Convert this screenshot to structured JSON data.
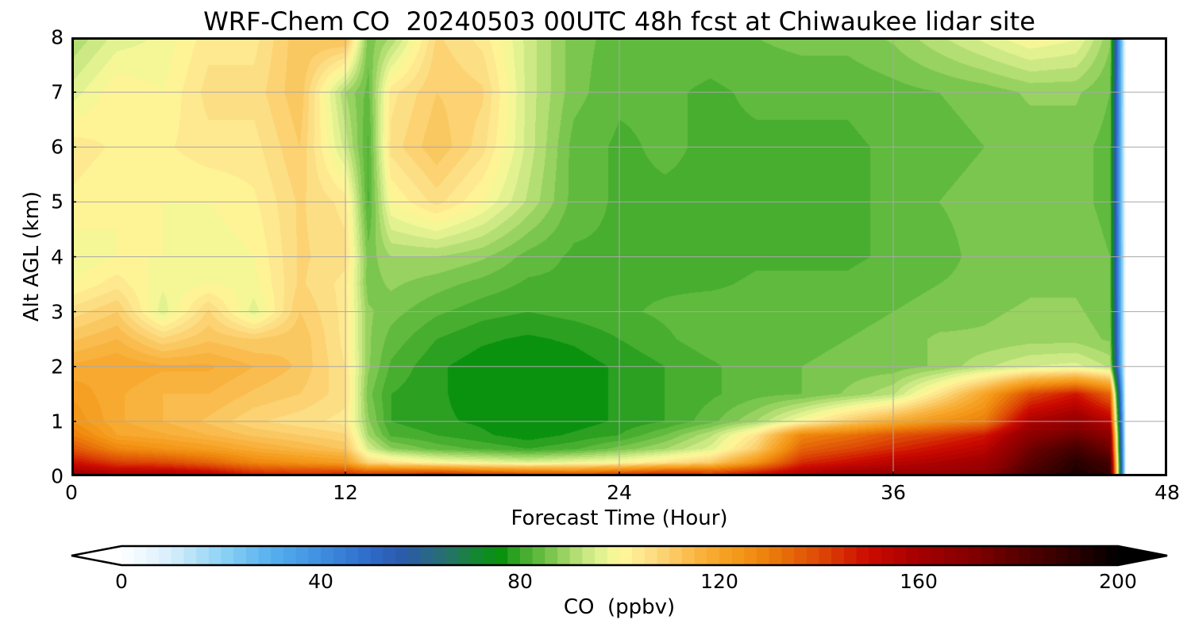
{
  "chart_data": {
    "type": "heatmap",
    "title": "WRF-Chem CO  20240503 00UTC 48h fcst at Chiwaukee lidar site",
    "xlabel": "Forecast Time (Hour)",
    "ylabel": "Alt AGL (km)",
    "xlim": [
      0,
      48
    ],
    "ylim": [
      0,
      8
    ],
    "xticks": [
      "0",
      "12",
      "24",
      "36",
      "48"
    ],
    "yticks": [
      "0",
      "1",
      "2",
      "3",
      "4",
      "5",
      "6",
      "7",
      "8"
    ],
    "grid": true,
    "x_hours": [
      0,
      2,
      4,
      6,
      8,
      10,
      12,
      13,
      14,
      16,
      18,
      20,
      22,
      24,
      26,
      28,
      30,
      32,
      34,
      36,
      38,
      40,
      42,
      44,
      45.5
    ],
    "y_km": [
      0,
      0.25,
      0.5,
      0.75,
      1,
      1.5,
      2,
      2.5,
      3,
      3.5,
      4,
      5,
      6,
      7,
      8
    ],
    "co_ppbv": [
      [
        165,
        160,
        162,
        158,
        150,
        148,
        150,
        148,
        150,
        155,
        150,
        148,
        145,
        150,
        155,
        150,
        155,
        160,
        165,
        165,
        165,
        168,
        185,
        195,
        190
      ],
      [
        150,
        142,
        140,
        135,
        128,
        125,
        122,
        108,
        105,
        100,
        98,
        96,
        98,
        100,
        105,
        110,
        125,
        145,
        150,
        155,
        158,
        162,
        180,
        192,
        185
      ],
      [
        138,
        128,
        125,
        122,
        118,
        115,
        112,
        95,
        88,
        84,
        82,
        80,
        82,
        86,
        90,
        96,
        110,
        135,
        140,
        145,
        150,
        155,
        175,
        185,
        175
      ],
      [
        130,
        120,
        118,
        115,
        112,
        110,
        108,
        90,
        82,
        80,
        78,
        76,
        78,
        80,
        85,
        92,
        105,
        128,
        132,
        138,
        142,
        148,
        168,
        175,
        168
      ],
      [
        125,
        118,
        115,
        112,
        108,
        106,
        104,
        88,
        80,
        78,
        77,
        75,
        76,
        78,
        80,
        84,
        90,
        100,
        110,
        118,
        125,
        130,
        158,
        165,
        155
      ],
      [
        122,
        118,
        115,
        115,
        112,
        110,
        106,
        86,
        80,
        78,
        76,
        75,
        76,
        78,
        80,
        82,
        84,
        85,
        88,
        92,
        105,
        120,
        140,
        148,
        135
      ],
      [
        118,
        120,
        118,
        118,
        115,
        112,
        105,
        88,
        82,
        78,
        76,
        75,
        76,
        78,
        80,
        82,
        84,
        85,
        86,
        86,
        88,
        92,
        95,
        96,
        92
      ],
      [
        112,
        115,
        108,
        112,
        110,
        112,
        104,
        88,
        84,
        80,
        78,
        77,
        78,
        80,
        82,
        84,
        84,
        84,
        85,
        86,
        88,
        88,
        89,
        89,
        87
      ],
      [
        106,
        110,
        96,
        108,
        96,
        110,
        104,
        88,
        86,
        83,
        81,
        80,
        81,
        82,
        83,
        84,
        84,
        84,
        84,
        85,
        86,
        87,
        88,
        88,
        86
      ],
      [
        100,
        104,
        98,
        100,
        99,
        108,
        104,
        86,
        88,
        86,
        84,
        82,
        82,
        82,
        82,
        82,
        83,
        83,
        83,
        84,
        85,
        86,
        87,
        87,
        85
      ],
      [
        98,
        100,
        100,
        98,
        100,
        108,
        106,
        86,
        90,
        90,
        88,
        84,
        82,
        82,
        82,
        81,
        82,
        82,
        82,
        83,
        84,
        86,
        87,
        87,
        85
      ],
      [
        102,
        100,
        100,
        100,
        102,
        108,
        104,
        82,
        100,
        106,
        100,
        92,
        84,
        82,
        82,
        82,
        82,
        82,
        82,
        83,
        85,
        86,
        86,
        86,
        84
      ],
      [
        104,
        102,
        102,
        104,
        104,
        110,
        94,
        82,
        106,
        112,
        106,
        94,
        84,
        82,
        83,
        82,
        82,
        82,
        82,
        83,
        84,
        85,
        86,
        86,
        84
      ],
      [
        96,
        102,
        100,
        106,
        106,
        112,
        90,
        84,
        104,
        110,
        108,
        94,
        86,
        83,
        83,
        82,
        83,
        83,
        83,
        84,
        85,
        86,
        88,
        88,
        85
      ],
      [
        90,
        96,
        98,
        104,
        104,
        112,
        114,
        86,
        90,
        108,
        104,
        94,
        86,
        84,
        84,
        84,
        85,
        86,
        86,
        88,
        92,
        96,
        100,
        98,
        88
      ]
    ],
    "beyond_x": 46.2,
    "colorbar": {
      "label": "CO  (ppbv)",
      "min": 0,
      "max": 200,
      "ticks": [
        "0",
        "40",
        "80",
        "120",
        "160",
        "200"
      ],
      "extend": "both",
      "stops": [
        [
          0,
          "#ffffff"
        ],
        [
          10,
          "#d6eefb"
        ],
        [
          20,
          "#8ed3f5"
        ],
        [
          30,
          "#56b0ee"
        ],
        [
          40,
          "#3f8fe0"
        ],
        [
          50,
          "#2f6ac9"
        ],
        [
          57,
          "#2a5aa8"
        ],
        [
          65,
          "#27716f"
        ],
        [
          72,
          "#128a2a"
        ],
        [
          76,
          "#07900c"
        ],
        [
          80,
          "#3ca82a"
        ],
        [
          85,
          "#6cc044"
        ],
        [
          90,
          "#a7d86a"
        ],
        [
          95,
          "#d8ef8e"
        ],
        [
          100,
          "#fffa9a"
        ],
        [
          105,
          "#fde38c"
        ],
        [
          110,
          "#fbcd6a"
        ],
        [
          115,
          "#f9b745"
        ],
        [
          120,
          "#f7a428"
        ],
        [
          125,
          "#f39415"
        ],
        [
          130,
          "#ec7d0b"
        ],
        [
          140,
          "#de4a06"
        ],
        [
          150,
          "#cc0a00"
        ],
        [
          160,
          "#a40000"
        ],
        [
          170,
          "#860000"
        ],
        [
          180,
          "#580000"
        ],
        [
          190,
          "#300000"
        ],
        [
          200,
          "#000000"
        ]
      ]
    }
  }
}
